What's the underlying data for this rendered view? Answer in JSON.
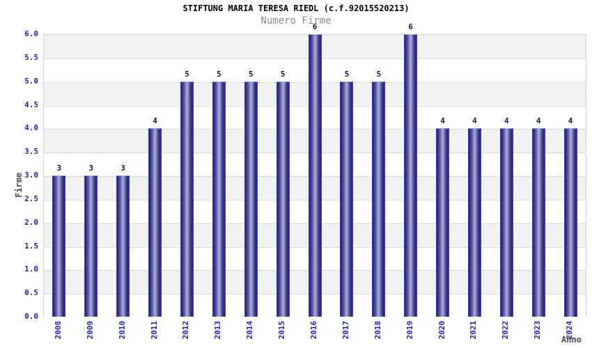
{
  "chart_data": {
    "type": "bar",
    "title": "STIFTUNG MARIA TERESA RIEDL (c.f.92015520213)",
    "subtitle": "Numero Firme",
    "xlabel": "Anno",
    "ylabel": "Firme",
    "categories": [
      "2008",
      "2009",
      "2010",
      "2011",
      "2012",
      "2013",
      "2014",
      "2015",
      "2016",
      "2017",
      "2018",
      "2019",
      "2020",
      "2021",
      "2022",
      "2023",
      "2024"
    ],
    "values": [
      3,
      3,
      3,
      4,
      5,
      5,
      5,
      5,
      6,
      5,
      5,
      6,
      4,
      4,
      4,
      4,
      4
    ],
    "ylim": [
      0,
      6
    ],
    "ytick_step": 0.5,
    "ytick_labels": [
      "0.0",
      "0.5",
      "1.0",
      "1.5",
      "2.0",
      "2.5",
      "3.0",
      "3.5",
      "4.0",
      "4.5",
      "5.0",
      "5.5",
      "6.0"
    ],
    "grid": true,
    "legend_position": "none",
    "colors": {
      "tick_label": "#1f1fce",
      "value_label": "#10105e",
      "bar_dark": "#23237d",
      "bar_light": "#b2b2da",
      "bar_edge": "#3c3cd2",
      "bar_top_highlight": "#8fb3f2",
      "band_gray": "#f2f2f2",
      "band_white": "#ffffff",
      "gridline": "#d9d9d9",
      "axis_label": "#4a4a4a",
      "subtitle": "#8a8a8a",
      "title": "#000000"
    }
  }
}
